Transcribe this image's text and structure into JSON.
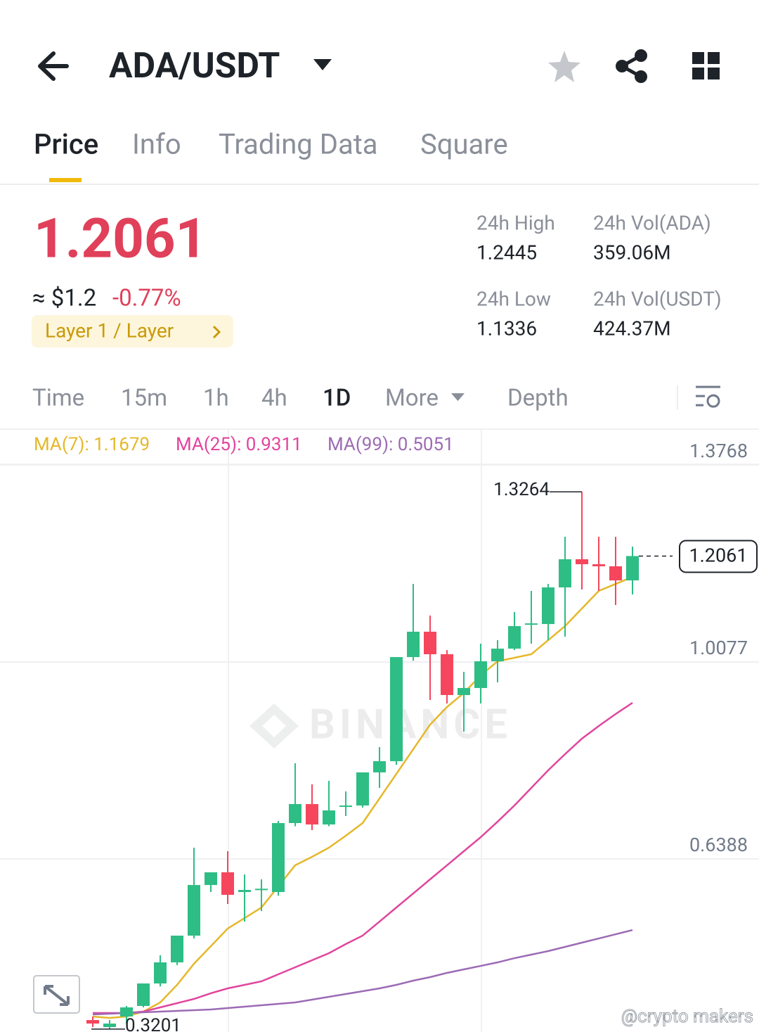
{
  "header": {
    "pair": "ADA/USDT"
  },
  "tabs": [
    "Price",
    "Info",
    "Trading Data",
    "Square"
  ],
  "price": {
    "last": "1.2061",
    "approx": "≈ $1.2",
    "change": "-0.77%",
    "tag": "Layer 1 / Layer"
  },
  "stats": [
    {
      "label": "24h High",
      "value": "1.2445"
    },
    {
      "label": "24h Vol(ADA)",
      "value": "359.06M"
    },
    {
      "label": "24h Low",
      "value": "1.1336"
    },
    {
      "label": "24h Vol(USDT)",
      "value": "424.37M"
    }
  ],
  "intervals": [
    "Time",
    "15m",
    "1h",
    "4h",
    "1D",
    "More",
    "Depth"
  ],
  "watermark": "BINANCE",
  "credit": "@crypto makers",
  "chart_data": {
    "type": "candlestick",
    "up_color": "#2ebd85",
    "down_color": "#f6465d",
    "open": [
      0.3371,
      0.3239,
      0.3437,
      0.3635,
      0.4056,
      0.4451,
      0.4952,
      0.59,
      0.6138,
      0.5769,
      0.5808,
      0.5769,
      0.706,
      0.7416,
      0.7034,
      0.7363,
      0.7389,
      0.8009,
      0.8219,
      1.0169,
      1.0644,
      1.0222,
      0.9458,
      0.959,
      1.009,
      1.0327,
      1.0788,
      1.0788,
      1.1474,
      1.2001,
      1.1908,
      1.1869,
      1.1605
    ],
    "high": [
      0.3437,
      0.3371,
      0.3635,
      0.4056,
      0.4583,
      0.4952,
      0.6599,
      0.6138,
      0.6533,
      0.6098,
      0.6006,
      0.71,
      0.818,
      0.7785,
      0.785,
      0.7653,
      0.8009,
      0.8483,
      1.0169,
      1.1539,
      1.0947,
      1.03,
      0.9893,
      1.042,
      1.0485,
      1.1012,
      1.1408,
      1.1539,
      1.2422,
      1.3264,
      1.2422,
      1.2422,
      1.2238
    ],
    "low": [
      0.3239,
      0.3201,
      0.3305,
      0.3608,
      0.4,
      0.44,
      0.49,
      0.5769,
      0.5545,
      0.5215,
      0.5413,
      0.57,
      0.7,
      0.6928,
      0.7,
      0.7192,
      0.735,
      0.7719,
      0.815,
      1.01,
      0.9366,
      0.93,
      0.8773,
      0.93,
      0.9695,
      1.03,
      1.042,
      1.0485,
      1.0551,
      1.1434,
      1.1408,
      1.1144,
      1.1342
    ],
    "close": [
      0.3305,
      0.3305,
      0.3608,
      0.4056,
      0.4451,
      0.4952,
      0.59,
      0.6138,
      0.5716,
      0.5808,
      0.583,
      0.706,
      0.7416,
      0.7034,
      0.7297,
      0.7389,
      0.8009,
      0.8219,
      1.0169,
      1.0644,
      1.0222,
      0.9458,
      0.959,
      1.009,
      1.0327,
      1.0749,
      1.08,
      1.1474,
      1.2001,
      1.1908,
      1.1869,
      1.1605,
      1.2061
    ],
    "series": [
      {
        "label": "MA(7): 1.1679",
        "color": "#e5b82a",
        "values": [
          0.3437,
          0.3411,
          0.3437,
          0.3529,
          0.37,
          0.403,
          0.4425,
          0.4754,
          0.5084,
          0.5281,
          0.5479,
          0.5874,
          0.6269,
          0.6428,
          0.6599,
          0.6823,
          0.706,
          0.7521,
          0.7982,
          0.8443,
          0.8904,
          0.9234,
          0.9497,
          0.9827,
          1.009,
          1.0156,
          1.0222,
          1.0485,
          1.0749,
          1.1078,
          1.1408,
          1.1539,
          1.1671
        ]
      },
      {
        "label": "MA(25): 0.9311",
        "color": "#e0459e",
        "values": [
          0.3503,
          0.3503,
          0.3503,
          0.3529,
          0.3608,
          0.3687,
          0.3766,
          0.3872,
          0.3964,
          0.403,
          0.4096,
          0.4227,
          0.4359,
          0.4491,
          0.4623,
          0.4794,
          0.4952,
          0.5215,
          0.5479,
          0.5742,
          0.6006,
          0.6269,
          0.6533,
          0.6796,
          0.7086,
          0.7389,
          0.7719,
          0.8048,
          0.8351,
          0.8641,
          0.8878,
          0.9102,
          0.9313
        ]
      },
      {
        "label": "MA(99): 0.5051",
        "color": "#9c6bb5",
        "values": [
          0.3476,
          0.349,
          0.3503,
          0.3516,
          0.3529,
          0.3542,
          0.3556,
          0.3569,
          0.3595,
          0.3621,
          0.3648,
          0.3674,
          0.37,
          0.3753,
          0.3806,
          0.3858,
          0.3911,
          0.3964,
          0.403,
          0.4109,
          0.4175,
          0.4254,
          0.432,
          0.4385,
          0.4451,
          0.453,
          0.4596,
          0.4662,
          0.4741,
          0.482,
          0.4899,
          0.4978,
          0.5057
        ]
      }
    ],
    "annotations": {
      "high": 1.3264,
      "high_index": 29,
      "low": 0.3201,
      "low_index": 1
    },
    "last_price": 1.2061,
    "ylim": [
      0.3147,
      1.4412
    ],
    "yticks": [
      1.3768,
      1.0077,
      0.6388
    ],
    "grid": true
  }
}
